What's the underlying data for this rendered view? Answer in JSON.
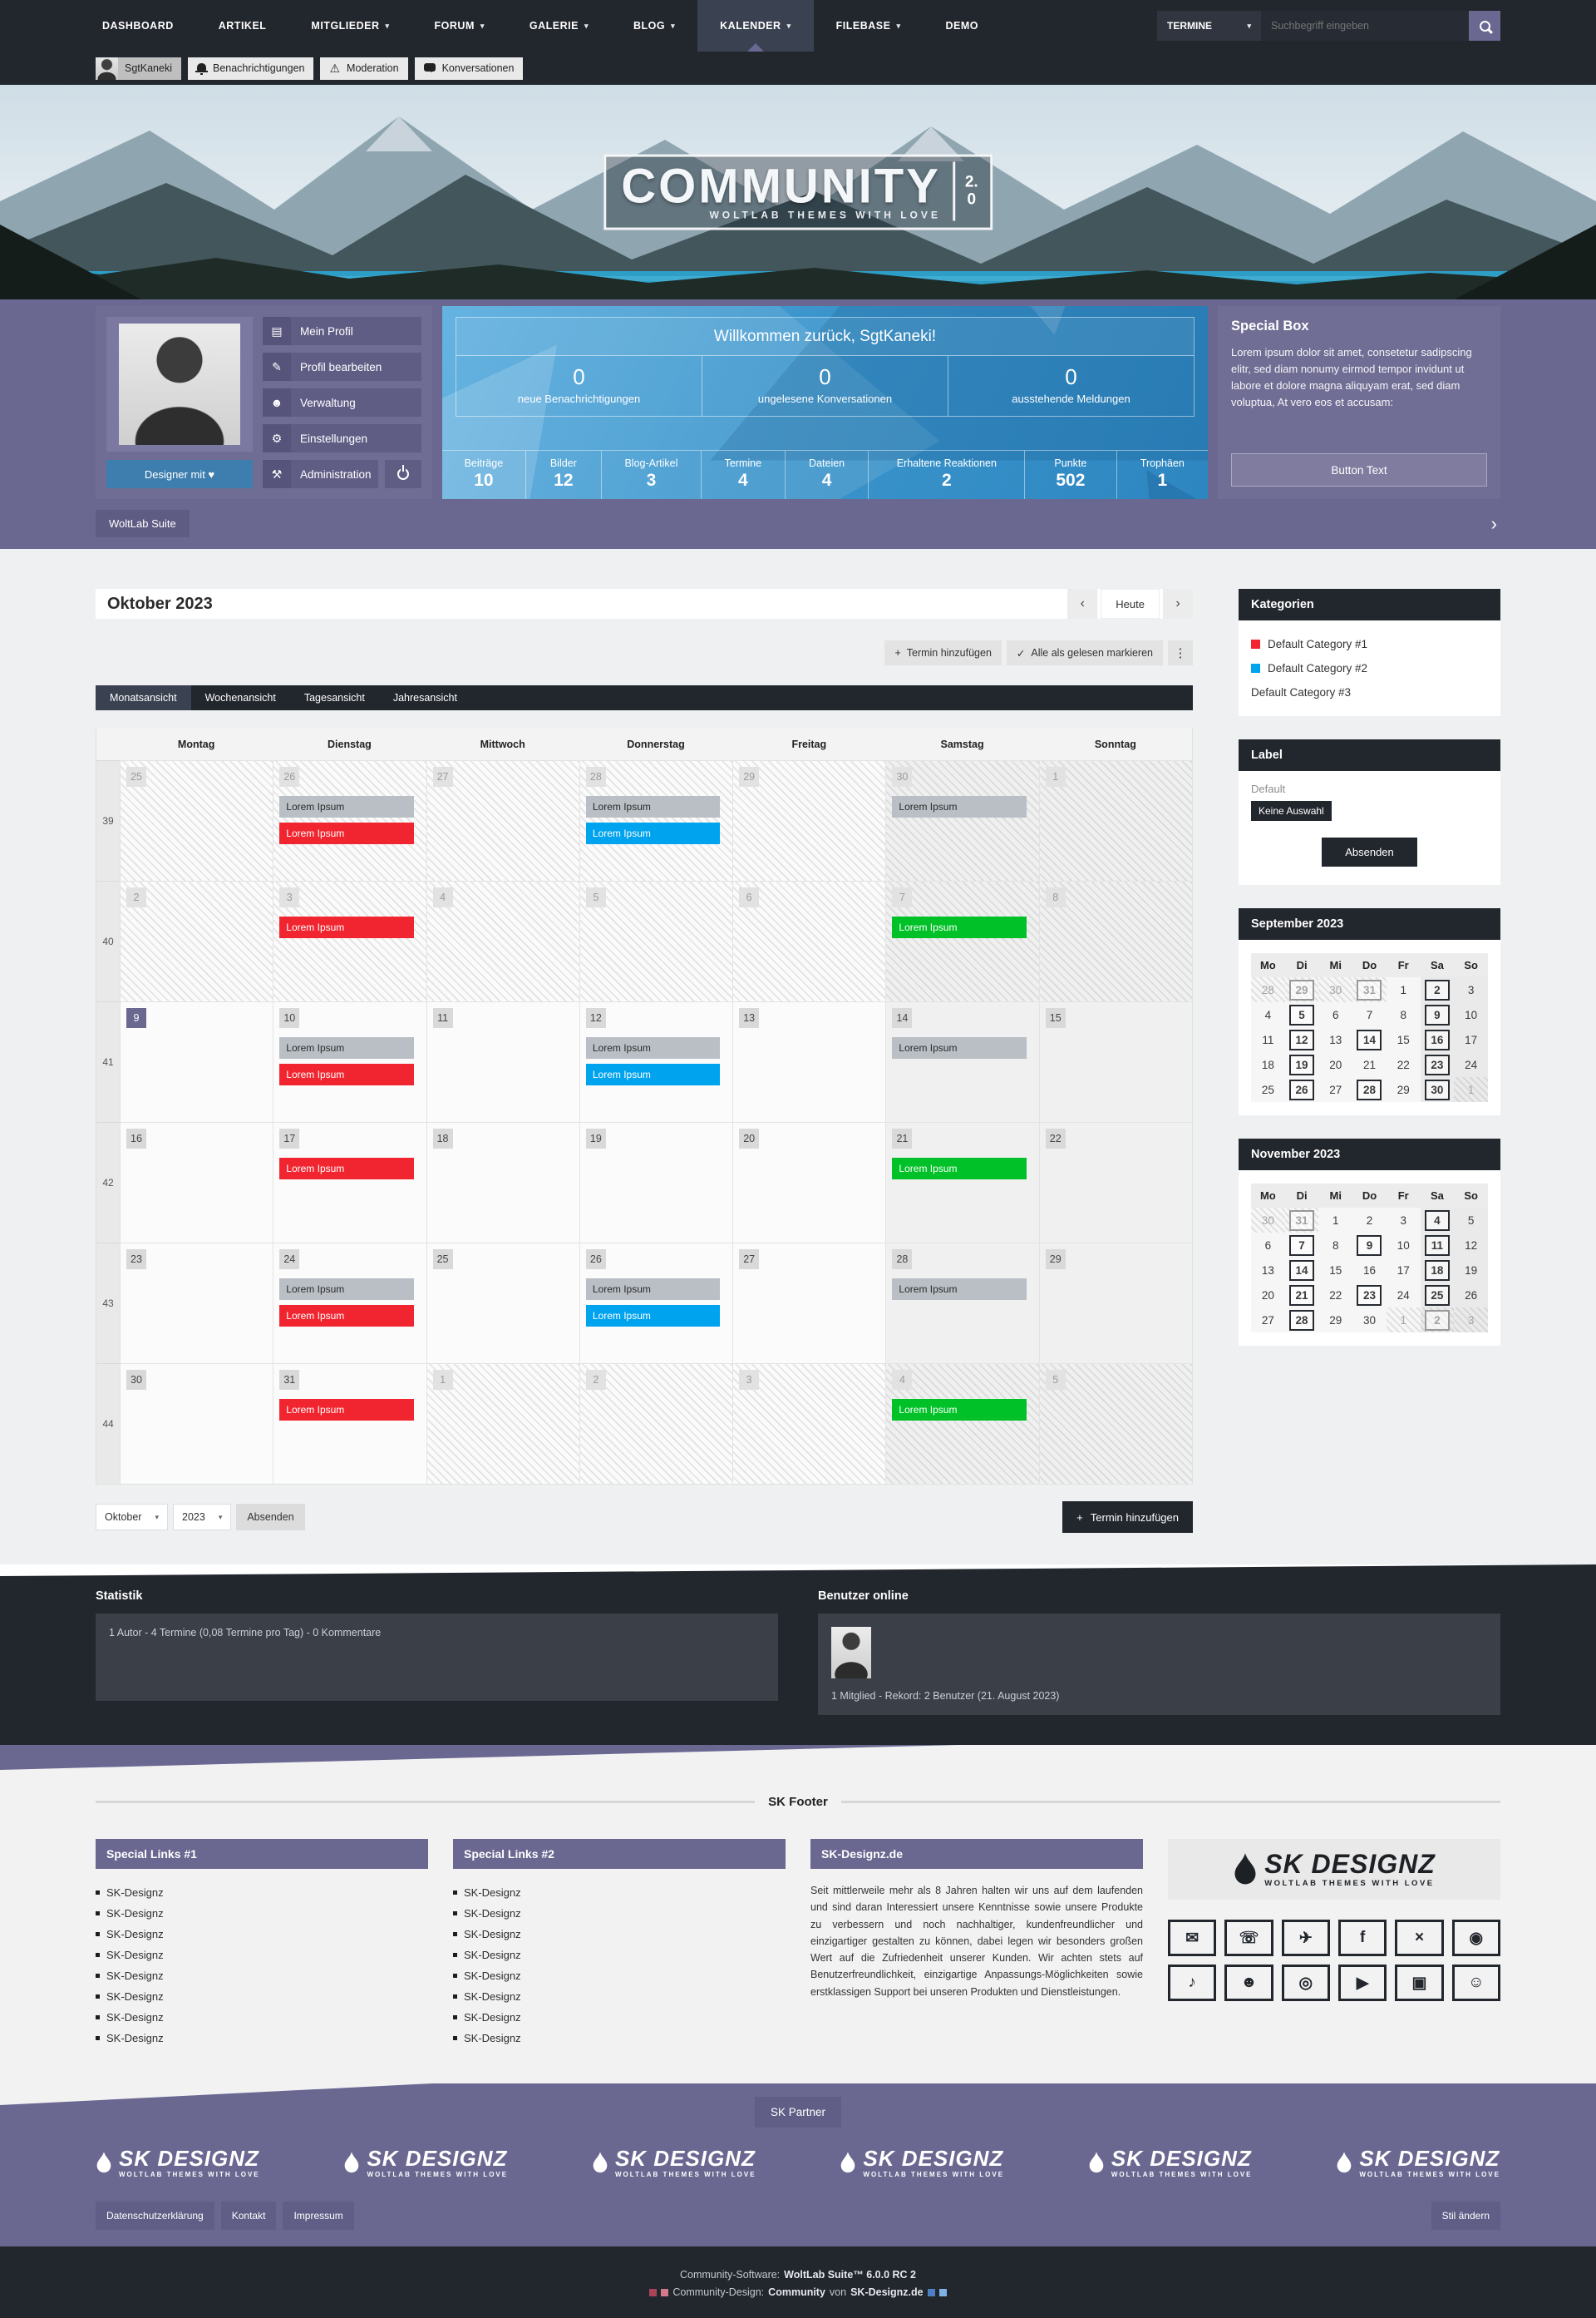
{
  "nav": {
    "items": [
      {
        "label": "DASHBOARD",
        "caret": false,
        "active": false
      },
      {
        "label": "ARTIKEL",
        "caret": false,
        "active": false
      },
      {
        "label": "MITGLIEDER",
        "caret": true,
        "active": false
      },
      {
        "label": "FORUM",
        "caret": true,
        "active": false
      },
      {
        "label": "GALERIE",
        "caret": true,
        "active": false
      },
      {
        "label": "BLOG",
        "caret": true,
        "active": false
      },
      {
        "label": "KALENDER",
        "caret": true,
        "active": true
      },
      {
        "label": "FILEBASE",
        "caret": true,
        "active": false
      },
      {
        "label": "DEMO",
        "caret": false,
        "active": false
      }
    ],
    "search_scope": "TERMINE",
    "search_placeholder": "Suchbegriff eingeben"
  },
  "userbar": {
    "username": "SgtKaneki",
    "items": [
      {
        "label": "Benachrichtigungen",
        "icon": "bell-icon"
      },
      {
        "label": "Moderation",
        "icon": "warning-icon"
      },
      {
        "label": "Konversationen",
        "icon": "chat-bubbles-icon"
      }
    ]
  },
  "hero": {
    "title": "COMMUNITY",
    "tagline": "WOLTLAB THEMES WITH LOVE",
    "version_top": "2.",
    "version_bottom": "0"
  },
  "profile": {
    "menu": [
      {
        "label": "Mein Profil",
        "icon": "id-card-icon"
      },
      {
        "label": "Profil bearbeiten",
        "icon": "pencil-icon"
      },
      {
        "label": "Verwaltung",
        "icon": "user-icon"
      },
      {
        "label": "Einstellungen",
        "icon": "gears-icon"
      },
      {
        "label": "Administration",
        "icon": "wrench-icon"
      }
    ],
    "designer_button": "Designer mit ♥",
    "suite_label": "WoltLab Suite"
  },
  "welcome": {
    "title": "Willkommen zurück, SgtKaneki!",
    "stats": [
      {
        "value": "0",
        "label": "neue Benachrichtigungen"
      },
      {
        "value": "0",
        "label": "ungelesene Konversationen"
      },
      {
        "value": "0",
        "label": "ausstehende Meldungen"
      }
    ],
    "counters": [
      {
        "label": "Beiträge",
        "value": "10",
        "f": 0.95
      },
      {
        "label": "Bilder",
        "value": "12",
        "f": 0.85
      },
      {
        "label": "Blog-Artikel",
        "value": "3",
        "f": 1.15
      },
      {
        "label": "Termine",
        "value": "4",
        "f": 0.95
      },
      {
        "label": "Dateien",
        "value": "4",
        "f": 0.95
      },
      {
        "label": "Erhaltene Reaktionen",
        "value": "2",
        "f": 1.85
      },
      {
        "label": "Punkte",
        "value": "502",
        "f": 1.05
      },
      {
        "label": "Trophäen",
        "value": "1",
        "f": 1.05
      }
    ]
  },
  "special_box": {
    "title": "Special Box",
    "text": "Lorem ipsum dolor sit amet, consetetur sadipscing elitr, sed diam nonumy eirmod tempor invidunt ut labore et dolore magna aliquyam erat, sed diam voluptua, At vero eos et accusam:",
    "button": "Button Text"
  },
  "calendar": {
    "title": "Oktober 2023",
    "today_button": "Heute",
    "add_button": "Termin hinzufügen",
    "mark_read_button": "Alle als gelesen markieren",
    "views": [
      "Monatsansicht",
      "Wochenansicht",
      "Tagesansicht",
      "Jahresansicht"
    ],
    "day_headers": [
      "Montag",
      "Dienstag",
      "Mittwoch",
      "Donnerstag",
      "Freitag",
      "Samstag",
      "Sonntag"
    ],
    "event_label": "Lorem Ipsum",
    "event_colors": {
      "gray": "#b9bfc5",
      "red": "#f1252f",
      "blue": "#00a3ee",
      "green": "#00c127"
    },
    "weeks": [
      {
        "n": 39,
        "days": [
          {
            "d": 25,
            "h": 1
          },
          {
            "d": 26,
            "h": 1,
            "ev": [
              {
                "c": "gray"
              },
              {
                "c": "red"
              }
            ]
          },
          {
            "d": 27,
            "h": 1
          },
          {
            "d": 28,
            "h": 1,
            "ev": [
              {
                "c": "gray"
              },
              {
                "c": "blue"
              }
            ]
          },
          {
            "d": 29,
            "h": 1
          },
          {
            "d": 30,
            "h": 1,
            "ev": [
              {
                "c": "gray"
              }
            ]
          },
          {
            "d": 1,
            "h": 1
          }
        ]
      },
      {
        "n": 40,
        "days": [
          {
            "d": 2,
            "h": 1
          },
          {
            "d": 3,
            "h": 1,
            "ev": [
              {
                "c": "red"
              }
            ]
          },
          {
            "d": 4,
            "h": 1
          },
          {
            "d": 5,
            "h": 1
          },
          {
            "d": 6,
            "h": 1
          },
          {
            "d": 7,
            "h": 1,
            "ev": [
              {
                "c": "green"
              }
            ]
          },
          {
            "d": 8,
            "h": 1
          }
        ]
      },
      {
        "n": 41,
        "days": [
          {
            "d": 9,
            "today": 1
          },
          {
            "d": 10,
            "ev": [
              {
                "c": "gray"
              },
              {
                "c": "red"
              }
            ]
          },
          {
            "d": 11
          },
          {
            "d": 12,
            "ev": [
              {
                "c": "gray"
              },
              {
                "c": "blue"
              }
            ]
          },
          {
            "d": 13
          },
          {
            "d": 14,
            "ev": [
              {
                "c": "gray"
              }
            ]
          },
          {
            "d": 15
          }
        ]
      },
      {
        "n": 42,
        "days": [
          {
            "d": 16
          },
          {
            "d": 17,
            "ev": [
              {
                "c": "red"
              }
            ]
          },
          {
            "d": 18
          },
          {
            "d": 19
          },
          {
            "d": 20
          },
          {
            "d": 21,
            "ev": [
              {
                "c": "green"
              }
            ]
          },
          {
            "d": 22
          }
        ]
      },
      {
        "n": 43,
        "days": [
          {
            "d": 23
          },
          {
            "d": 24,
            "ev": [
              {
                "c": "gray"
              },
              {
                "c": "red"
              }
            ]
          },
          {
            "d": 25
          },
          {
            "d": 26,
            "ev": [
              {
                "c": "gray"
              },
              {
                "c": "blue"
              }
            ]
          },
          {
            "d": 27
          },
          {
            "d": 28,
            "ev": [
              {
                "c": "gray"
              }
            ]
          },
          {
            "d": 29
          }
        ]
      },
      {
        "n": 44,
        "days": [
          {
            "d": 30
          },
          {
            "d": 31,
            "ev": [
              {
                "c": "red"
              }
            ]
          },
          {
            "d": 1,
            "h": 1
          },
          {
            "d": 2,
            "h": 1
          },
          {
            "d": 3,
            "h": 1
          },
          {
            "d": 4,
            "h": 1,
            "ev": [
              {
                "c": "green"
              }
            ]
          },
          {
            "d": 5,
            "h": 1
          }
        ]
      }
    ],
    "month_select": "Oktober",
    "year_select": "2023",
    "submit_button": "Absenden"
  },
  "sidebar": {
    "categories": {
      "title": "Kategorien",
      "items": [
        {
          "label": "Default Category #1",
          "color": "#f1252f"
        },
        {
          "label": "Default Category #2",
          "color": "#00a3ee"
        },
        {
          "label": "Default Category #3",
          "color": ""
        }
      ]
    },
    "label_box": {
      "title": "Label",
      "group": "Default",
      "selection": "Keine Auswahl",
      "submit": "Absenden"
    },
    "minis": [
      {
        "title": "September 2023",
        "heads": [
          "Mo",
          "Di",
          "Mi",
          "Do",
          "Fr",
          "Sa",
          "So"
        ],
        "weeks": [
          [
            {
              "d": 28,
              "o": 1
            },
            {
              "d": 29,
              "o": 1,
              "b": 1
            },
            {
              "d": 30,
              "o": 1
            },
            {
              "d": 31,
              "o": 1,
              "b": 1
            },
            {
              "d": 1
            },
            {
              "d": 2,
              "b": 1
            },
            {
              "d": 3
            }
          ],
          [
            {
              "d": 4
            },
            {
              "d": 5,
              "b": 1
            },
            {
              "d": 6
            },
            {
              "d": 7
            },
            {
              "d": 8
            },
            {
              "d": 9,
              "b": 1
            },
            {
              "d": 10
            }
          ],
          [
            {
              "d": 11
            },
            {
              "d": 12,
              "b": 1
            },
            {
              "d": 13
            },
            {
              "d": 14,
              "b": 1
            },
            {
              "d": 15
            },
            {
              "d": 16,
              "b": 1
            },
            {
              "d": 17
            }
          ],
          [
            {
              "d": 18
            },
            {
              "d": 19,
              "b": 1
            },
            {
              "d": 20
            },
            {
              "d": 21
            },
            {
              "d": 22
            },
            {
              "d": 23,
              "b": 1
            },
            {
              "d": 24
            }
          ],
          [
            {
              "d": 25
            },
            {
              "d": 26,
              "b": 1
            },
            {
              "d": 27
            },
            {
              "d": 28,
              "b": 1
            },
            {
              "d": 29
            },
            {
              "d": 30,
              "b": 1
            },
            {
              "d": 1,
              "o": 1
            }
          ]
        ]
      },
      {
        "title": "November 2023",
        "heads": [
          "Mo",
          "Di",
          "Mi",
          "Do",
          "Fr",
          "Sa",
          "So"
        ],
        "weeks": [
          [
            {
              "d": 30,
              "o": 1
            },
            {
              "d": 31,
              "o": 1,
              "b": 1
            },
            {
              "d": 1
            },
            {
              "d": 2
            },
            {
              "d": 3
            },
            {
              "d": 4,
              "b": 1
            },
            {
              "d": 5
            }
          ],
          [
            {
              "d": 6
            },
            {
              "d": 7,
              "b": 1
            },
            {
              "d": 8
            },
            {
              "d": 9,
              "b": 1
            },
            {
              "d": 10
            },
            {
              "d": 11,
              "b": 1
            },
            {
              "d": 12
            }
          ],
          [
            {
              "d": 13
            },
            {
              "d": 14,
              "b": 1
            },
            {
              "d": 15
            },
            {
              "d": 16
            },
            {
              "d": 17
            },
            {
              "d": 18,
              "b": 1
            },
            {
              "d": 19
            }
          ],
          [
            {
              "d": 20
            },
            {
              "d": 21,
              "b": 1
            },
            {
              "d": 22
            },
            {
              "d": 23,
              "b": 1
            },
            {
              "d": 24
            },
            {
              "d": 25,
              "b": 1
            },
            {
              "d": 26
            }
          ],
          [
            {
              "d": 27
            },
            {
              "d": 28,
              "b": 1
            },
            {
              "d": 29
            },
            {
              "d": 30
            },
            {
              "d": 1,
              "o": 1
            },
            {
              "d": 2,
              "o": 1,
              "b": 1
            },
            {
              "d": 3,
              "o": 1
            }
          ]
        ]
      }
    ]
  },
  "stats_band": {
    "statistik_title": "Statistik",
    "statistik_text": "1 Autor - 4 Termine (0,08 Termine pro Tag) - 0 Kommentare",
    "online_title": "Benutzer online",
    "online_text": "1 Mitglied - Rekord: 2 Benutzer (21. August 2023)"
  },
  "sk_footer": {
    "title": "SK Footer",
    "col1": {
      "title": "Special Links #1",
      "links": [
        "SK-Designz",
        "SK-Designz",
        "SK-Designz",
        "SK-Designz",
        "SK-Designz",
        "SK-Designz",
        "SK-Designz",
        "SK-Designz"
      ]
    },
    "col2": {
      "title": "Special Links #2",
      "links": [
        "SK-Designz",
        "SK-Designz",
        "SK-Designz",
        "SK-Designz",
        "SK-Designz",
        "SK-Designz",
        "SK-Designz",
        "SK-Designz"
      ]
    },
    "col3": {
      "title": "SK-Designz.de",
      "text": "Seit mittlerweile mehr als 8 Jahren halten wir uns auf dem laufenden und sind daran Interessiert unsere Kenntnisse sowie unsere Produkte zu verbessern und noch nachhaltiger, kundenfreundlicher und einzigartiger gestalten zu können, dabei legen wir besonders großen Wert auf die Zufriedenheit unserer Kunden. Wir achten stets auf Benutzerfreundlichkeit, einzigartige Anpassungs-Möglichkeiten sowie erstklassigen Support bei unseren Produkten und Dienstleistungen."
    },
    "logo": {
      "name": "SK DESIGNZ",
      "tagline": "WOLTLAB THEMES WITH LOVE"
    },
    "social": [
      "mail",
      "whatsapp",
      "telegram",
      "facebook",
      "x",
      "instagram",
      "tiktok",
      "discord",
      "teamspeak",
      "youtube",
      "twitch",
      "reddit"
    ]
  },
  "partner": {
    "title": "SK Partner",
    "logo_count": 6
  },
  "legal": {
    "links": [
      "Datenschutzerklärung",
      "Kontakt",
      "Impressum"
    ],
    "style_button": "Stil ändern",
    "software_label": "Community-Software:",
    "software_value": "WoltLab Suite™ 6.0.0 RC 2",
    "design_label": "Community-Design:",
    "design_name": "Community",
    "design_middle": "von",
    "design_site": "SK-Designz.de",
    "design_squares_left": [
      "#a94458",
      "#d2798b"
    ],
    "design_squares_right": [
      "#4d7fc4",
      "#7fb3e8"
    ]
  }
}
